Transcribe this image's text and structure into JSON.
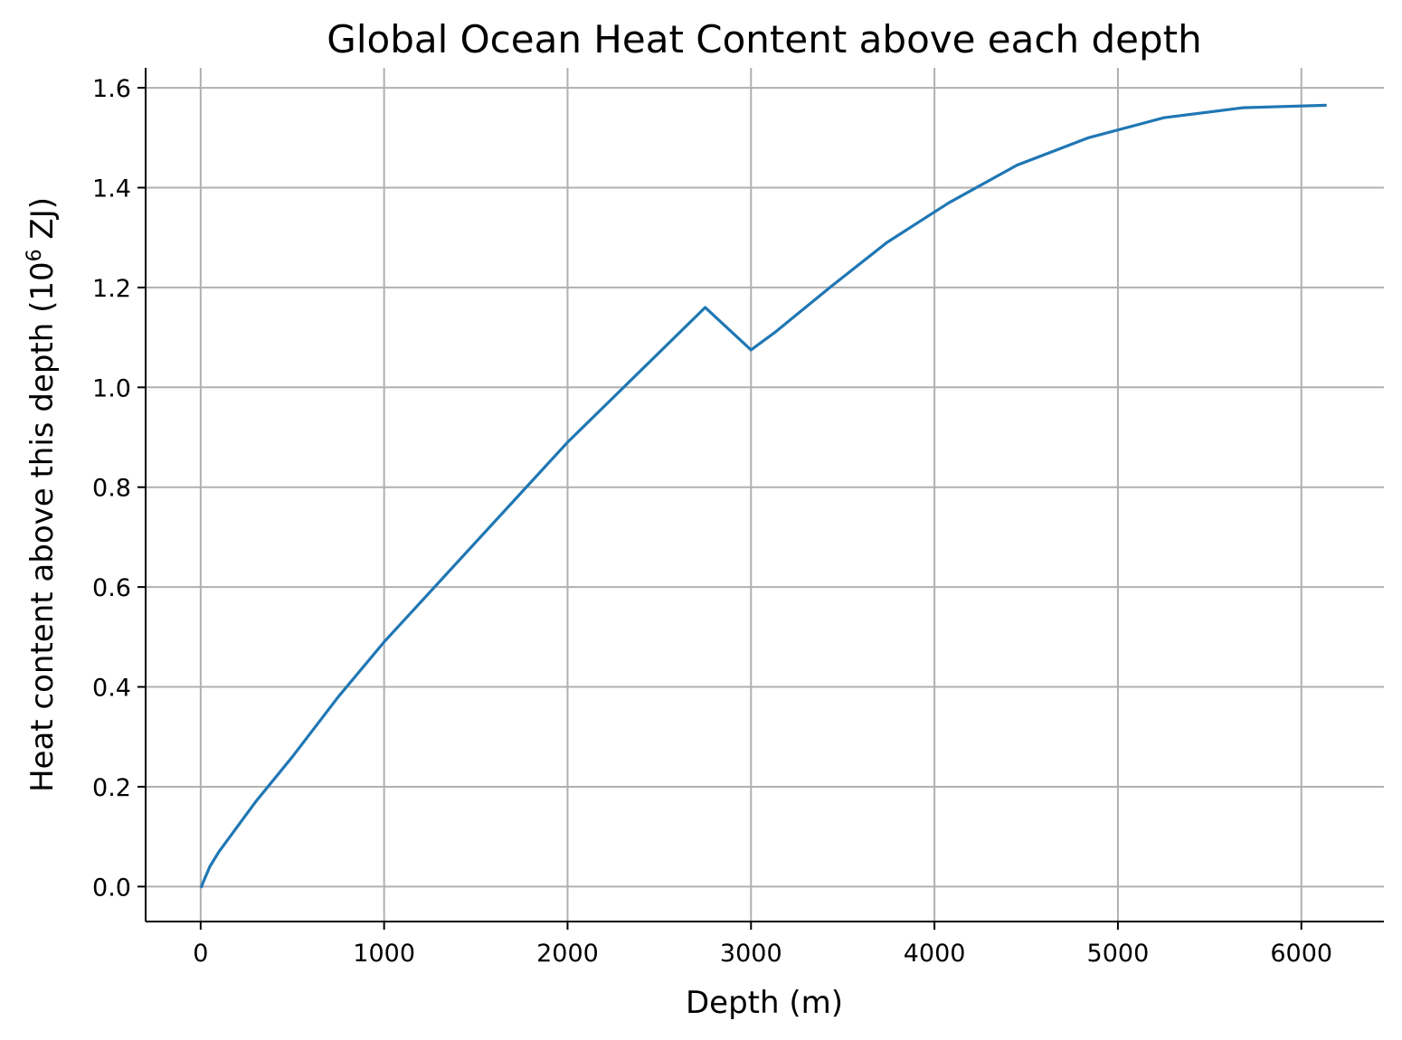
{
  "chart_data": {
    "type": "line",
    "title": "Global Ocean Heat Content above each depth",
    "xlabel": "Depth (m)",
    "ylabel_main": "Heat content above this depth (10",
    "ylabel_sup": "6",
    "ylabel_end": " ZJ)",
    "xlim": [
      -300,
      6450
    ],
    "ylim": [
      -0.07,
      1.64
    ],
    "xticks": [
      0,
      1000,
      2000,
      3000,
      4000,
      5000,
      6000
    ],
    "xtick_labels": [
      "0",
      "1000",
      "2000",
      "3000",
      "4000",
      "5000",
      "6000"
    ],
    "yticks": [
      0.0,
      0.2,
      0.4,
      0.6,
      0.8,
      1.0,
      1.2,
      1.4,
      1.6
    ],
    "ytick_labels": [
      "0.0",
      "0.2",
      "0.4",
      "0.6",
      "0.8",
      "1.0",
      "1.2",
      "1.4",
      "1.6"
    ],
    "grid": true,
    "line_color": "#1f77b4",
    "series": [
      {
        "x": [
          5,
          15,
          50,
          100,
          200,
          300,
          500,
          750,
          1000,
          1250,
          1500,
          1750,
          2000,
          2250,
          2500,
          2750,
          3000,
          3130,
          3430,
          3740,
          4080,
          4450,
          4840,
          5250,
          5680,
          6130
        ],
        "values": [
          0.0,
          0.01,
          0.04,
          0.07,
          0.12,
          0.17,
          0.26,
          0.38,
          0.49,
          0.59,
          0.69,
          0.79,
          0.89,
          0.98,
          1.07,
          1.16,
          1.075,
          1.11,
          1.2,
          1.29,
          1.37,
          1.445,
          1.5,
          1.54,
          1.56,
          1.565
        ]
      }
    ]
  }
}
